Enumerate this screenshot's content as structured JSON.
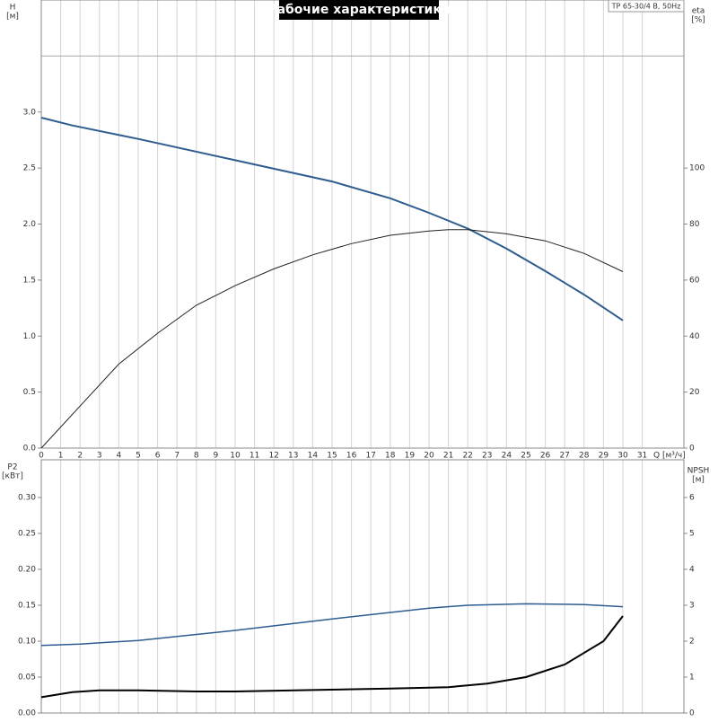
{
  "chart_data": [
    {
      "type": "line",
      "title": "Рабочие характеристики",
      "annotation": "TP 65-30/4 B, 50Hz",
      "ylabel": "H",
      "yunit": "[м]",
      "y2label": "eta",
      "y2unit": "[%]",
      "xlabel": "Q [м³/ч]",
      "xlim": [
        0,
        33.15
      ],
      "xticks": [
        0,
        1,
        2,
        3,
        4,
        5,
        6,
        7,
        8,
        9,
        10,
        11,
        12,
        13,
        14,
        15,
        16,
        17,
        18,
        19,
        20,
        21,
        22,
        23,
        24,
        25,
        26,
        27,
        28,
        29,
        30,
        31
      ],
      "show_xtick_labels": true,
      "ylim": [
        0,
        4.0
      ],
      "yticks": [
        {
          "value": 0,
          "label": "0.0"
        },
        {
          "value": 0.5,
          "label": "0.5"
        },
        {
          "value": 1,
          "label": "1.0"
        },
        {
          "value": 1.5,
          "label": "1.5"
        },
        {
          "value": 2,
          "label": "2.0"
        },
        {
          "value": 2.5,
          "label": "2.5"
        },
        {
          "value": 3,
          "label": "3.0"
        }
      ],
      "reference_lines": [
        3.5
      ],
      "y2lim": [
        0,
        160
      ],
      "y2ticks": [
        0,
        20,
        40,
        60,
        80,
        100
      ],
      "series": [
        {
          "name": "H",
          "color": "#2e5c8f",
          "width": 2,
          "x": [
            0,
            1.6,
            5,
            10,
            15,
            18,
            20,
            22,
            24,
            26,
            28,
            30
          ],
          "values": [
            2.95,
            2.88,
            2.76,
            2.57,
            2.38,
            2.23,
            2.1,
            1.96,
            1.78,
            1.58,
            1.37,
            1.14
          ]
        },
        {
          "name": "eta",
          "color": "#222222",
          "width": 1,
          "axis": "y2",
          "x": [
            0,
            2,
            4,
            6,
            8,
            10,
            12,
            14,
            16,
            18,
            20,
            21,
            22,
            24,
            26,
            28,
            30
          ],
          "values": [
            0,
            15,
            30,
            41,
            51,
            58,
            64,
            69,
            73,
            76,
            77.5,
            78,
            78,
            76.5,
            74,
            69.5,
            63
          ]
        }
      ]
    },
    {
      "type": "line",
      "ylabel": "P2",
      "yunit": "[кВт]",
      "y2label": "NPSH",
      "y2unit": "[м]",
      "xlim": [
        0,
        33.15
      ],
      "xticks": [
        0,
        1,
        2,
        3,
        4,
        5,
        6,
        7,
        8,
        9,
        10,
        11,
        12,
        13,
        14,
        15,
        16,
        17,
        18,
        19,
        20,
        21,
        22,
        23,
        24,
        25,
        26,
        27,
        28,
        29,
        30,
        31
      ],
      "show_xtick_labels": false,
      "ylim": [
        0,
        0.3525
      ],
      "yticks": [
        {
          "value": 0,
          "label": "0.00"
        },
        {
          "value": 0.05,
          "label": "0.05"
        },
        {
          "value": 0.1,
          "label": "0.10"
        },
        {
          "value": 0.15,
          "label": "0.15"
        },
        {
          "value": 0.2,
          "label": "0.20"
        },
        {
          "value": 0.25,
          "label": "0.25"
        },
        {
          "value": 0.3,
          "label": "0.30"
        }
      ],
      "y2lim": [
        0,
        7.05
      ],
      "y2ticks": [
        0,
        1,
        2,
        3,
        4,
        5,
        6
      ],
      "series": [
        {
          "name": "P2",
          "color": "#2e5c8f",
          "width": 1.5,
          "x": [
            0,
            2,
            5,
            10,
            15,
            20,
            22,
            25,
            28,
            30
          ],
          "values": [
            0.094,
            0.096,
            0.101,
            0.115,
            0.131,
            0.146,
            0.15,
            0.152,
            0.151,
            0.148
          ]
        },
        {
          "name": "NPSH",
          "color": "#000000",
          "width": 2,
          "axis": "y2",
          "x": [
            0,
            1.6,
            3,
            5,
            8,
            10,
            14,
            18,
            21,
            23,
            25,
            27,
            29,
            30
          ],
          "values": [
            0.44,
            0.58,
            0.63,
            0.63,
            0.6,
            0.6,
            0.64,
            0.68,
            0.72,
            0.82,
            1.0,
            1.35,
            2.0,
            2.7
          ]
        }
      ]
    }
  ]
}
